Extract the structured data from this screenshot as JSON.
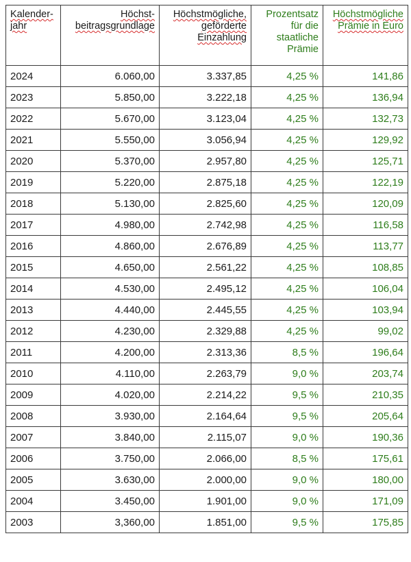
{
  "headers": {
    "year": [
      "Kalender-",
      "jahr"
    ],
    "basis": [
      "Höchst-",
      "beitragsgrundlage"
    ],
    "einzahlung": [
      "Höchstmögliche,",
      "geförderte",
      "Einzahlung"
    ],
    "prozent": [
      "Prozentsatz",
      "für die",
      "staatliche",
      "Prämie"
    ],
    "praemie": [
      "Höchstmögliche",
      "Prämie in Euro"
    ]
  },
  "rows": [
    [
      "2024",
      "6.060,00",
      "3.337,85",
      "4,25 %",
      "141,86"
    ],
    [
      "2023",
      "5.850,00",
      "3.222,18",
      "4,25 %",
      "136,94"
    ],
    [
      "2022",
      "5.670,00",
      "3.123,04",
      "4,25 %",
      "132,73"
    ],
    [
      "2021",
      "5.550,00",
      "3.056,94",
      "4,25 %",
      "129,92"
    ],
    [
      "2020",
      "5.370,00",
      "2.957,80",
      "4,25 %",
      "125,71"
    ],
    [
      "2019",
      "5.220,00",
      "2.875,18",
      "4,25 %",
      "122,19"
    ],
    [
      "2018",
      "5.130,00",
      "2.825,60",
      "4,25 %",
      "120,09"
    ],
    [
      "2017",
      "4.980,00",
      "2.742,98",
      "4,25 %",
      "116,58"
    ],
    [
      "2016",
      "4.860,00",
      "2.676,89",
      "4,25 %",
      "113,77"
    ],
    [
      "2015",
      "4.650,00",
      "2.561,22",
      "4,25 %",
      "108,85"
    ],
    [
      "2014",
      "4.530,00",
      "2.495,12",
      "4,25 %",
      "106,04"
    ],
    [
      "2013",
      "4.440,00",
      "2.445,55",
      "4,25 %",
      "103,94"
    ],
    [
      "2012",
      "4.230,00",
      "2.329,88",
      "4,25 %",
      "99,02"
    ],
    [
      "2011",
      "4.200,00",
      "2.313,36",
      "8,5 %",
      "196,64"
    ],
    [
      "2010",
      "4.110,00",
      "2.263,79",
      "9,0 %",
      "203,74"
    ],
    [
      "2009",
      "4.020,00",
      "2.214,22",
      "9,5 %",
      "210,35"
    ],
    [
      "2008",
      "3.930,00",
      "2.164,64",
      "9,5 %",
      "205,64"
    ],
    [
      "2007",
      "3.840,00",
      "2.115,07",
      "9,0 %",
      "190,36"
    ],
    [
      "2006",
      "3.750,00",
      "2.066,00",
      "8,5 %",
      "175,61"
    ],
    [
      "2005",
      "3.630,00",
      "2.000,00",
      "9,0 %",
      "180,00"
    ],
    [
      "2004",
      "3.450,00",
      "1.901,00",
      "9,0 %",
      "171,09"
    ],
    [
      "2003",
      "3,360,00",
      "1.851,00",
      "9,5 %",
      "175,85"
    ]
  ]
}
